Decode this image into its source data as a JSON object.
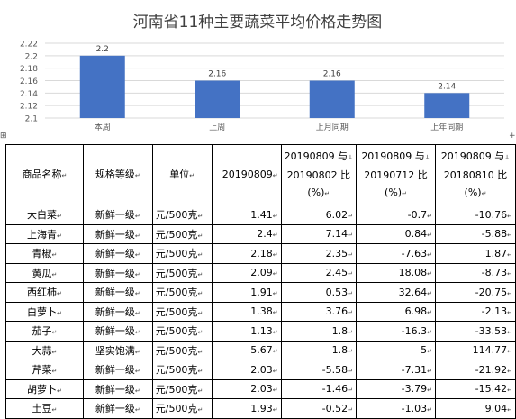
{
  "chart_data": {
    "type": "bar",
    "title": "河南省11种主要蔬菜平均价格走势图",
    "categories": [
      "本周",
      "上周",
      "上月同期",
      "上年同期"
    ],
    "values": [
      2.2,
      2.16,
      2.16,
      2.14
    ],
    "value_labels": [
      "2.2",
      "2.16",
      "2.16",
      "2.14"
    ],
    "ylim": [
      2.1,
      2.22
    ],
    "yticks": [
      "2.1",
      "2.12",
      "2.14",
      "2.16",
      "2.18",
      "2.2",
      "2.22"
    ],
    "grid": true,
    "bar_color": "#4472C4"
  },
  "table": {
    "headers": {
      "name": "商品名称",
      "grade": "规格等级",
      "unit": "单位",
      "date": "20190809",
      "wow_line1": "20190809 与",
      "wow_line2": "20190802 比",
      "wow_line3": "(%)",
      "mom_line1": "20190809 与",
      "mom_line2": "20190712 比",
      "mom_line3": "(%)",
      "yoy_line1": "20190809 与",
      "yoy_line2": "20180810 比",
      "yoy_line3": "(%)"
    },
    "rows": [
      {
        "name": "大白菜",
        "grade": "新鲜一级",
        "unit": "元/500克",
        "price": "1.41",
        "wow": "6.02",
        "mom": "-0.7",
        "yoy": "-10.76"
      },
      {
        "name": "上海青",
        "grade": "新鲜一级",
        "unit": "元/500克",
        "price": "2.4",
        "wow": "7.14",
        "mom": "0.84",
        "yoy": "-5.88"
      },
      {
        "name": "青椒",
        "grade": "新鲜一级",
        "unit": "元/500克",
        "price": "2.18",
        "wow": "2.35",
        "mom": "-7.63",
        "yoy": "1.87"
      },
      {
        "name": "黄瓜",
        "grade": "新鲜一级",
        "unit": "元/500克",
        "price": "2.09",
        "wow": "2.45",
        "mom": "18.08",
        "yoy": "-8.73"
      },
      {
        "name": "西红柿",
        "grade": "新鲜一级",
        "unit": "元/500克",
        "price": "1.91",
        "wow": "0.53",
        "mom": "32.64",
        "yoy": "-20.75"
      },
      {
        "name": "白萝卜",
        "grade": "新鲜一级",
        "unit": "元/500克",
        "price": "1.38",
        "wow": "3.76",
        "mom": "6.98",
        "yoy": "-2.13"
      },
      {
        "name": "茄子",
        "grade": "新鲜一级",
        "unit": "元/500克",
        "price": "1.13",
        "wow": "1.8",
        "mom": "-16.3",
        "yoy": "-33.53"
      },
      {
        "name": "大蒜",
        "grade": "坚实饱满",
        "unit": "元/500克",
        "price": "5.67",
        "wow": "1.8",
        "mom": "5",
        "yoy": "114.77"
      },
      {
        "name": "芹菜",
        "grade": "新鲜一级",
        "unit": "元/500克",
        "price": "2.03",
        "wow": "-5.58",
        "mom": "-7.31",
        "yoy": "-21.92"
      },
      {
        "name": "胡萝卜",
        "grade": "新鲜一级",
        "unit": "元/500克",
        "price": "2.03",
        "wow": "-1.46",
        "mom": "-3.79",
        "yoy": "-15.42"
      },
      {
        "name": "土豆",
        "grade": "新鲜一级",
        "unit": "元/500克",
        "price": "1.93",
        "wow": "-0.52",
        "mom": "-1.03",
        "yoy": "9.04"
      }
    ]
  }
}
